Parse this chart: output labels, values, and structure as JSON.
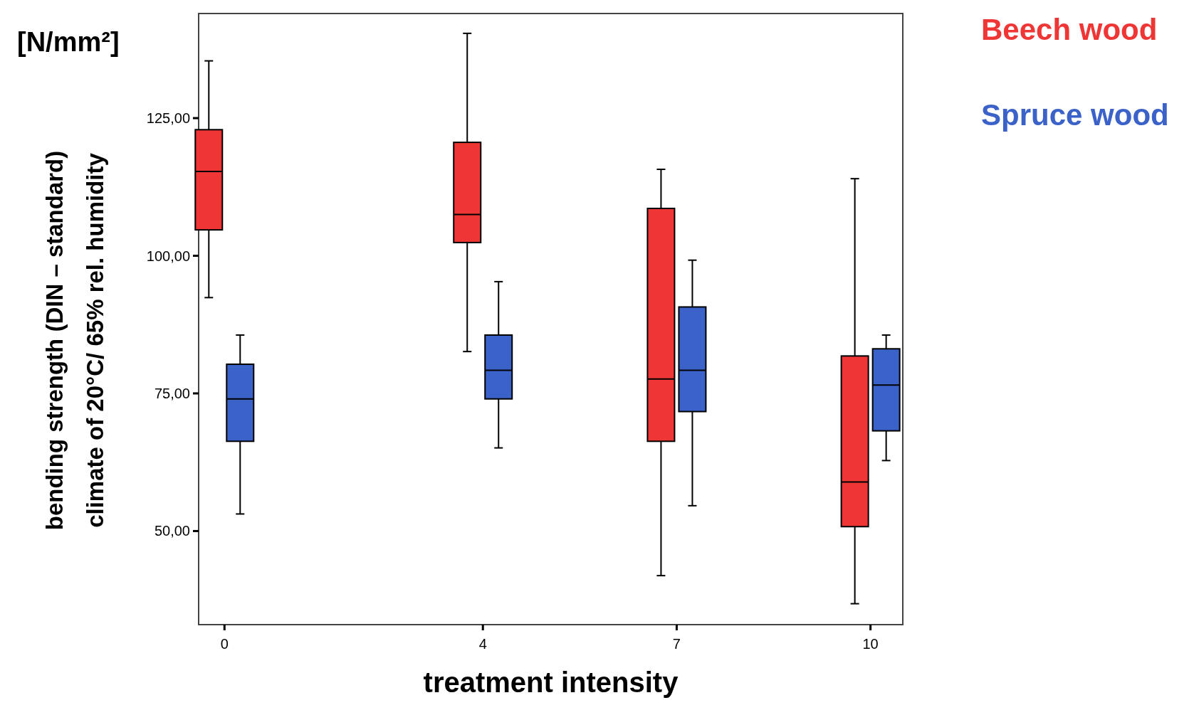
{
  "chart_data": {
    "type": "box",
    "xlabel": "treatment intensity",
    "ylabel": "bending strength (DIN – standard)\nclimate of 20°C/ 65% rel. humidity",
    "annotations": [
      "[N/mm²]"
    ],
    "x": [
      0,
      4,
      7,
      10
    ],
    "xlim": [
      -0.4,
      10.5
    ],
    "xticks": [
      0,
      4,
      7,
      10
    ],
    "ylim": [
      33,
      144
    ],
    "yticks": [
      {
        "value": 50,
        "label": "50,00"
      },
      {
        "value": 75,
        "label": "75,00"
      },
      {
        "value": 100,
        "label": "100,00"
      },
      {
        "value": 125,
        "label": "125,00"
      }
    ],
    "legend": "right",
    "grid": false,
    "series": [
      {
        "name": "Beech wood",
        "color": "#f03535",
        "boxes": [
          {
            "low": 92.4,
            "q1": 104.7,
            "median": 115.3,
            "q3": 122.9,
            "high": 135.4
          },
          {
            "low": 82.6,
            "q1": 102.4,
            "median": 107.5,
            "q3": 120.6,
            "high": 140.4
          },
          {
            "low": 41.9,
            "q1": 66.3,
            "median": 77.6,
            "q3": 108.6,
            "high": 115.7
          },
          {
            "low": 36.8,
            "q1": 50.8,
            "median": 58.9,
            "q3": 81.8,
            "high": 114
          }
        ]
      },
      {
        "name": "Spruce wood",
        "color": "#3a62c8",
        "boxes": [
          {
            "low": 53.1,
            "q1": 66.3,
            "median": 74,
            "q3": 80.3,
            "high": 85.6
          },
          {
            "low": 65.1,
            "q1": 74,
            "median": 79.2,
            "q3": 85.6,
            "high": 95.3
          },
          {
            "low": 54.6,
            "q1": 71.7,
            "median": 79.2,
            "q3": 90.7,
            "high": 99.2
          },
          {
            "low": 62.8,
            "q1": 68.2,
            "median": 76.5,
            "q3": 83.1,
            "high": 85.6
          }
        ]
      }
    ]
  }
}
